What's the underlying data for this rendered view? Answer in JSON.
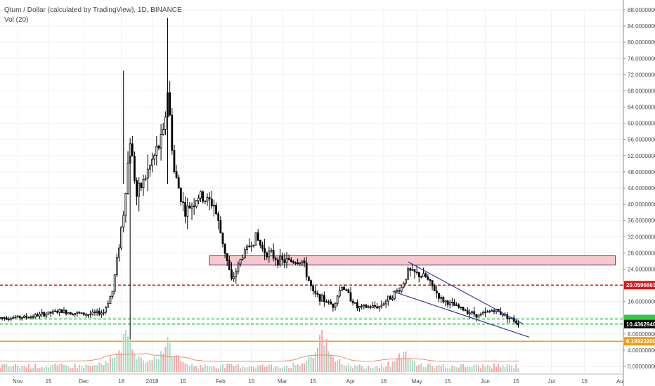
{
  "chart_data": {
    "type": "candlestick",
    "title": "Qtum / Dollar (calculated by TradingView), 1D, BINANCE",
    "subtitle": "Vol (20)",
    "y_axis": {
      "scale": "linear",
      "ticks": [
        "88.00000000",
        "84.00000000",
        "80.00000000",
        "76.00000000",
        "72.00000000",
        "68.00000000",
        "64.00000000",
        "60.00000000",
        "56.00000000",
        "52.00000000",
        "48.00000000",
        "44.00000000",
        "40.00000000",
        "36.00000000",
        "32.00000000",
        "28.00000000",
        "24.00000000",
        "20.00000000",
        "16.00000000",
        "12.00000000",
        "8.00000000",
        "4.00000000",
        "0.00000000"
      ],
      "range": [
        0,
        88
      ]
    },
    "x_axis": {
      "ticks": [
        "Nov",
        "15",
        "Dec",
        "18",
        "2018",
        "15",
        "Feb",
        "15",
        "Mar",
        "15",
        "Apr",
        "16",
        "May",
        "15",
        "Jun",
        "15",
        "Jul",
        "16",
        "Au"
      ]
    },
    "price_labels": [
      {
        "text": "20.05966631",
        "color": "#e31313"
      },
      {
        "text": "10.43629400",
        "color": "#000000"
      },
      {
        "text": "6.19923200",
        "color": "#f39c12"
      }
    ],
    "horizontal_levels": [
      {
        "value": 20.06,
        "color": "#e31313",
        "style": "dashed"
      },
      {
        "value": 10.44,
        "color": "#2ecc40",
        "style": "dashed"
      },
      {
        "value": 11.7,
        "color": "#2ecc40",
        "style": "dashed"
      },
      {
        "value": 6.2,
        "color": "#f39c12",
        "style": "solid"
      }
    ],
    "zone": {
      "from": 25.0,
      "to": 27.3,
      "color": "#f8c8cc"
    },
    "wedge": {
      "upper_start": [
        "2018-04-27",
        25.8
      ],
      "upper_end": [
        "2018-06-18",
        10.5
      ],
      "lower_start": [
        "2018-04-20",
        18.5
      ],
      "lower_end": [
        "2018-06-21",
        7.2
      ],
      "color": "#3b3ba0"
    },
    "series": [
      {
        "name": "Qtum / Dollar",
        "anchors": [
          [
            "2017-10-24",
            12.0
          ],
          [
            "2017-11-06",
            12.2
          ],
          [
            "2017-11-20",
            13.6
          ],
          [
            "2017-12-03",
            12.8
          ],
          [
            "2017-12-10",
            13.4
          ],
          [
            "2017-12-14",
            18.5
          ],
          [
            "2017-12-19",
            38.0
          ],
          [
            "2017-12-22",
            56.0
          ],
          [
            "2017-12-25",
            42.0
          ],
          [
            "2018-01-01",
            50.5
          ],
          [
            "2018-01-06",
            57.0
          ],
          [
            "2018-01-08",
            68.0
          ],
          [
            "2018-01-11",
            48.0
          ],
          [
            "2018-01-16",
            38.0
          ],
          [
            "2018-01-22",
            42.0
          ],
          [
            "2018-01-29",
            40.0
          ],
          [
            "2018-02-04",
            26.0
          ],
          [
            "2018-02-06",
            21.0
          ],
          [
            "2018-02-11",
            27.5
          ],
          [
            "2018-02-17",
            32.0
          ],
          [
            "2018-02-20",
            29.0
          ],
          [
            "2018-02-28",
            26.0
          ],
          [
            "2018-03-10",
            26.0
          ],
          [
            "2018-03-15",
            18.0
          ],
          [
            "2018-03-24",
            15.0
          ],
          [
            "2018-03-28",
            20.0
          ],
          [
            "2018-04-04",
            14.5
          ],
          [
            "2018-04-14",
            14.8
          ],
          [
            "2018-04-24",
            19.5
          ],
          [
            "2018-04-27",
            23.5
          ],
          [
            "2018-05-05",
            22.0
          ],
          [
            "2018-05-12",
            16.5
          ],
          [
            "2018-05-20",
            14.5
          ],
          [
            "2018-05-29",
            12.5
          ],
          [
            "2018-06-05",
            14.0
          ],
          [
            "2018-06-12",
            12.0
          ],
          [
            "2018-06-16",
            10.6
          ]
        ]
      },
      {
        "name": "Vol (20)",
        "peaks": [
          [
            "2017-12-20",
            0.95
          ],
          [
            "2018-01-07",
            0.8
          ],
          [
            "2018-03-19",
            0.9
          ],
          [
            "2018-04-25",
            0.35
          ]
        ]
      }
    ],
    "last_price": 10.436294
  }
}
